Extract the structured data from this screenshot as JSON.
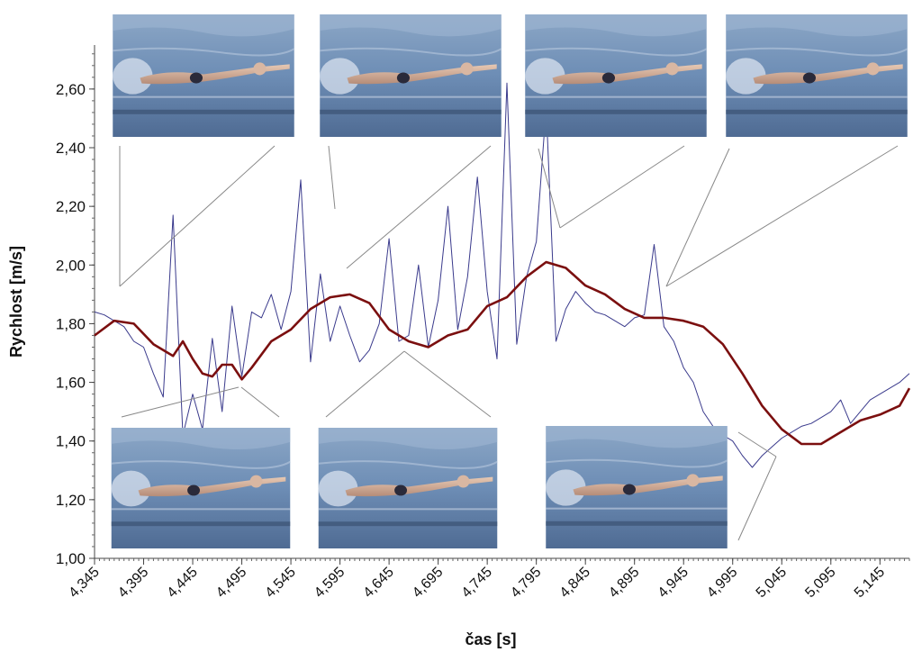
{
  "chart_data": {
    "type": "line",
    "xlabel": "čas [s]",
    "ylabel": "Rychlost [m/s]",
    "xlim": [
      4.345,
      5.175
    ],
    "ylim": [
      1.0,
      2.75
    ],
    "y_ticks": [
      "1,00",
      "1,20",
      "1,40",
      "1,60",
      "1,80",
      "2,00",
      "2,20",
      "2,40",
      "2,60"
    ],
    "y_tick_values": [
      1.0,
      1.2,
      1.4,
      1.6,
      1.8,
      2.0,
      2.2,
      2.4,
      2.6
    ],
    "x_ticks": [
      "4,345",
      "4,395",
      "4,445",
      "4,495",
      "4,545",
      "4,595",
      "4,645",
      "4,695",
      "4,745",
      "4,795",
      "4,845",
      "4,895",
      "4,945",
      "4,995",
      "5,045",
      "5,095",
      "5,145"
    ],
    "x_tick_values": [
      4.345,
      4.395,
      4.445,
      4.495,
      4.545,
      4.595,
      4.645,
      4.695,
      4.745,
      4.795,
      4.845,
      4.895,
      4.945,
      4.995,
      5.045,
      5.095,
      5.145
    ],
    "grid": false,
    "series": [
      {
        "color": "#3a3a8c",
        "x": [
          4.345,
          4.355,
          4.365,
          4.375,
          4.385,
          4.395,
          4.405,
          4.415,
          4.425,
          4.435,
          4.445,
          4.455,
          4.465,
          4.475,
          4.485,
          4.495,
          4.505,
          4.515,
          4.525,
          4.535,
          4.545,
          4.555,
          4.565,
          4.575,
          4.585,
          4.595,
          4.605,
          4.615,
          4.625,
          4.635,
          4.645,
          4.655,
          4.665,
          4.675,
          4.685,
          4.695,
          4.705,
          4.715,
          4.725,
          4.735,
          4.745,
          4.755,
          4.765,
          4.775,
          4.785,
          4.795,
          4.805,
          4.815,
          4.825,
          4.835,
          4.845,
          4.855,
          4.865,
          4.875,
          4.885,
          4.895,
          4.905,
          4.915,
          4.925,
          4.935,
          4.945,
          4.955,
          4.965,
          4.975,
          4.985,
          4.995,
          5.005,
          5.015,
          5.025,
          5.035,
          5.045,
          5.055,
          5.065,
          5.075,
          5.085,
          5.095,
          5.105,
          5.115,
          5.125,
          5.135,
          5.145,
          5.155,
          5.165,
          5.175
        ],
        "y": [
          1.84,
          1.83,
          1.81,
          1.79,
          1.74,
          1.72,
          1.63,
          1.55,
          2.17,
          1.42,
          1.56,
          1.44,
          1.75,
          1.5,
          1.86,
          1.62,
          1.84,
          1.82,
          1.9,
          1.78,
          1.91,
          2.29,
          1.67,
          1.97,
          1.74,
          1.86,
          1.76,
          1.67,
          1.71,
          1.8,
          2.09,
          1.74,
          1.76,
          2.0,
          1.72,
          1.88,
          2.2,
          1.78,
          1.96,
          2.3,
          1.91,
          1.68,
          2.62,
          1.73,
          1.96,
          2.08,
          2.54,
          1.74,
          1.85,
          1.91,
          1.87,
          1.84,
          1.83,
          1.81,
          1.79,
          1.82,
          1.83,
          2.07,
          1.79,
          1.74,
          1.65,
          1.6,
          1.5,
          1.45,
          1.42,
          1.4,
          1.35,
          1.31,
          1.35,
          1.38,
          1.41,
          1.43,
          1.45,
          1.46,
          1.48,
          1.5,
          1.54,
          1.46,
          1.5,
          1.54,
          1.56,
          1.58,
          1.6,
          1.63
        ]
      },
      {
        "color": "#7b0f0f",
        "x": [
          4.345,
          4.365,
          4.385,
          4.405,
          4.425,
          4.435,
          4.445,
          4.455,
          4.465,
          4.475,
          4.485,
          4.495,
          4.505,
          4.525,
          4.545,
          4.565,
          4.585,
          4.605,
          4.625,
          4.645,
          4.665,
          4.685,
          4.705,
          4.725,
          4.745,
          4.765,
          4.785,
          4.805,
          4.815,
          4.825,
          4.845,
          4.865,
          4.885,
          4.905,
          4.925,
          4.945,
          4.965,
          4.985,
          5.005,
          5.025,
          5.045,
          5.065,
          5.085,
          5.105,
          5.125,
          5.145,
          5.165,
          5.175
        ],
        "y": [
          1.76,
          1.81,
          1.8,
          1.73,
          1.69,
          1.74,
          1.68,
          1.63,
          1.62,
          1.66,
          1.66,
          1.61,
          1.65,
          1.74,
          1.78,
          1.85,
          1.89,
          1.9,
          1.87,
          1.78,
          1.74,
          1.72,
          1.76,
          1.78,
          1.86,
          1.89,
          1.96,
          2.01,
          2.0,
          1.99,
          1.93,
          1.9,
          1.85,
          1.82,
          1.82,
          1.81,
          1.79,
          1.73,
          1.63,
          1.52,
          1.44,
          1.39,
          1.39,
          1.43,
          1.47,
          1.49,
          1.52,
          1.58
        ]
      }
    ]
  },
  "photos": [
    {
      "icon": "swimmer-photo"
    },
    {
      "icon": "swimmer-photo"
    },
    {
      "icon": "swimmer-photo"
    },
    {
      "icon": "swimmer-photo"
    },
    {
      "icon": "swimmer-photo"
    },
    {
      "icon": "swimmer-photo"
    },
    {
      "icon": "swimmer-photo"
    }
  ],
  "colors": {
    "raw_line": "#3a3a8c",
    "smooth_line": "#7b0f0f",
    "connector": "#888888",
    "water": "#5f7fa6"
  }
}
